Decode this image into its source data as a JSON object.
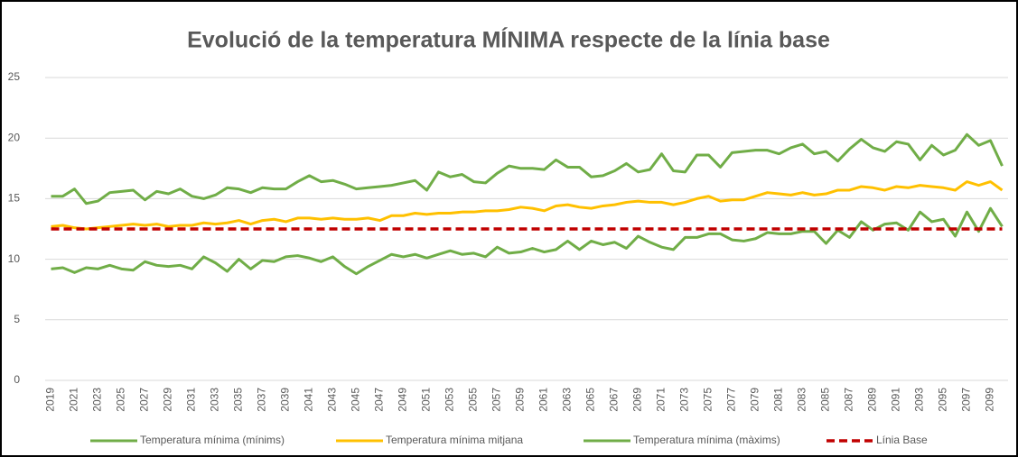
{
  "chart_data": {
    "type": "line",
    "title": "Evolució de la temperatura MÍNIMA respecte de la línia base",
    "categories": [
      "2019",
      null,
      "2021",
      null,
      "2023",
      null,
      "2025",
      null,
      "2027",
      null,
      "2029",
      null,
      "2031",
      null,
      "2033",
      null,
      "2035",
      null,
      "2037",
      null,
      "2039",
      null,
      "2041",
      null,
      "2043",
      null,
      "2045",
      null,
      "2047",
      null,
      "2049",
      null,
      "2051",
      null,
      "2053",
      null,
      "2055",
      null,
      "2057",
      null,
      "2059",
      null,
      "2061",
      null,
      "2063",
      null,
      "2065",
      null,
      "2067",
      null,
      "2069",
      null,
      "2071",
      null,
      "2073",
      null,
      "2075",
      null,
      "2077",
      null,
      "2079",
      null,
      "2081",
      null,
      "2083",
      null,
      "2085",
      null,
      "2087",
      null,
      "2089",
      null,
      "2091",
      null,
      "2093",
      null,
      "2095",
      null,
      "2097",
      null,
      "2099",
      null
    ],
    "series": [
      {
        "name": "Temperatura mínima (mínims)",
        "color": "#70ad47",
        "values": [
          9.2,
          9.3,
          8.9,
          9.3,
          9.2,
          9.5,
          9.2,
          9.1,
          9.8,
          9.5,
          9.4,
          9.5,
          9.2,
          10.2,
          9.7,
          9.0,
          10.0,
          9.2,
          9.9,
          9.8,
          10.2,
          10.3,
          10.1,
          9.8,
          10.2,
          9.4,
          8.8,
          9.4,
          9.9,
          10.4,
          10.2,
          10.4,
          10.1,
          10.4,
          10.7,
          10.4,
          10.5,
          10.2,
          11.0,
          10.5,
          10.6,
          10.9,
          10.6,
          10.8,
          11.5,
          10.8,
          11.5,
          11.2,
          11.4,
          10.9,
          11.9,
          11.4,
          11.0,
          10.8,
          11.8,
          11.8,
          12.1,
          12.1,
          11.6,
          11.5,
          11.7,
          12.2,
          12.1,
          12.1,
          12.3,
          12.3,
          11.3,
          12.4,
          11.8,
          13.1,
          12.4,
          12.9,
          13.0,
          12.4,
          13.9,
          13.1,
          13.3,
          11.9,
          13.9,
          12.3,
          14.2,
          12.7
        ]
      },
      {
        "name": "Temperatura mínima mitjana",
        "color": "#ffc000",
        "values": [
          12.7,
          12.8,
          12.6,
          12.5,
          12.6,
          12.7,
          12.8,
          12.9,
          12.8,
          12.9,
          12.7,
          12.8,
          12.8,
          13.0,
          12.9,
          13.0,
          13.2,
          12.9,
          13.2,
          13.3,
          13.1,
          13.4,
          13.4,
          13.3,
          13.4,
          13.3,
          13.3,
          13.4,
          13.2,
          13.6,
          13.6,
          13.8,
          13.7,
          13.8,
          13.8,
          13.9,
          13.9,
          14.0,
          14.0,
          14.1,
          14.3,
          14.2,
          14.0,
          14.4,
          14.5,
          14.3,
          14.2,
          14.4,
          14.5,
          14.7,
          14.8,
          14.7,
          14.7,
          14.5,
          14.7,
          15.0,
          15.2,
          14.8,
          14.9,
          14.9,
          15.2,
          15.5,
          15.4,
          15.3,
          15.5,
          15.3,
          15.4,
          15.7,
          15.7,
          16.0,
          15.9,
          15.7,
          16.0,
          15.9,
          16.1,
          16.0,
          15.9,
          15.7,
          16.4,
          16.1,
          16.4,
          15.7
        ]
      },
      {
        "name": "Temperatura mínima (màxims)",
        "color": "#70ad47",
        "values": [
          15.2,
          15.2,
          15.8,
          14.6,
          14.8,
          15.5,
          15.6,
          15.7,
          14.9,
          15.6,
          15.4,
          15.8,
          15.2,
          15.0,
          15.3,
          15.9,
          15.8,
          15.5,
          15.9,
          15.8,
          15.8,
          16.4,
          16.9,
          16.4,
          16.5,
          16.2,
          15.8,
          15.9,
          16.0,
          16.1,
          16.3,
          16.5,
          15.7,
          17.2,
          16.8,
          17.0,
          16.4,
          16.3,
          17.1,
          17.7,
          17.5,
          17.5,
          17.4,
          18.2,
          17.6,
          17.6,
          16.8,
          16.9,
          17.3,
          17.9,
          17.2,
          17.4,
          18.7,
          17.3,
          17.2,
          18.6,
          18.6,
          17.6,
          18.8,
          18.9,
          19.0,
          19.0,
          18.7,
          19.2,
          19.5,
          18.7,
          18.9,
          18.1,
          19.1,
          19.9,
          19.2,
          18.9,
          19.7,
          19.5,
          18.2,
          19.4,
          18.6,
          19.0,
          20.3,
          19.4,
          19.8,
          17.7
        ]
      },
      {
        "name": "Línia Base",
        "color": "#c00000",
        "dashed": true,
        "values": [
          12.5,
          12.5,
          12.5,
          12.5,
          12.5,
          12.5,
          12.5,
          12.5,
          12.5,
          12.5,
          12.5,
          12.5,
          12.5,
          12.5,
          12.5,
          12.5,
          12.5,
          12.5,
          12.5,
          12.5,
          12.5,
          12.5,
          12.5,
          12.5,
          12.5,
          12.5,
          12.5,
          12.5,
          12.5,
          12.5,
          12.5,
          12.5,
          12.5,
          12.5,
          12.5,
          12.5,
          12.5,
          12.5,
          12.5,
          12.5,
          12.5,
          12.5,
          12.5,
          12.5,
          12.5,
          12.5,
          12.5,
          12.5,
          12.5,
          12.5,
          12.5,
          12.5,
          12.5,
          12.5,
          12.5,
          12.5,
          12.5,
          12.5,
          12.5,
          12.5,
          12.5,
          12.5,
          12.5,
          12.5,
          12.5,
          12.5,
          12.5,
          12.5,
          12.5,
          12.5,
          12.5,
          12.5,
          12.5,
          12.5,
          12.5,
          12.5,
          12.5,
          12.5,
          12.5,
          12.5,
          12.5,
          12.5
        ]
      }
    ],
    "ylim": [
      0,
      25
    ],
    "yticks": [
      0,
      5,
      10,
      15,
      20,
      25
    ],
    "grid": true,
    "legend": "bottom"
  }
}
